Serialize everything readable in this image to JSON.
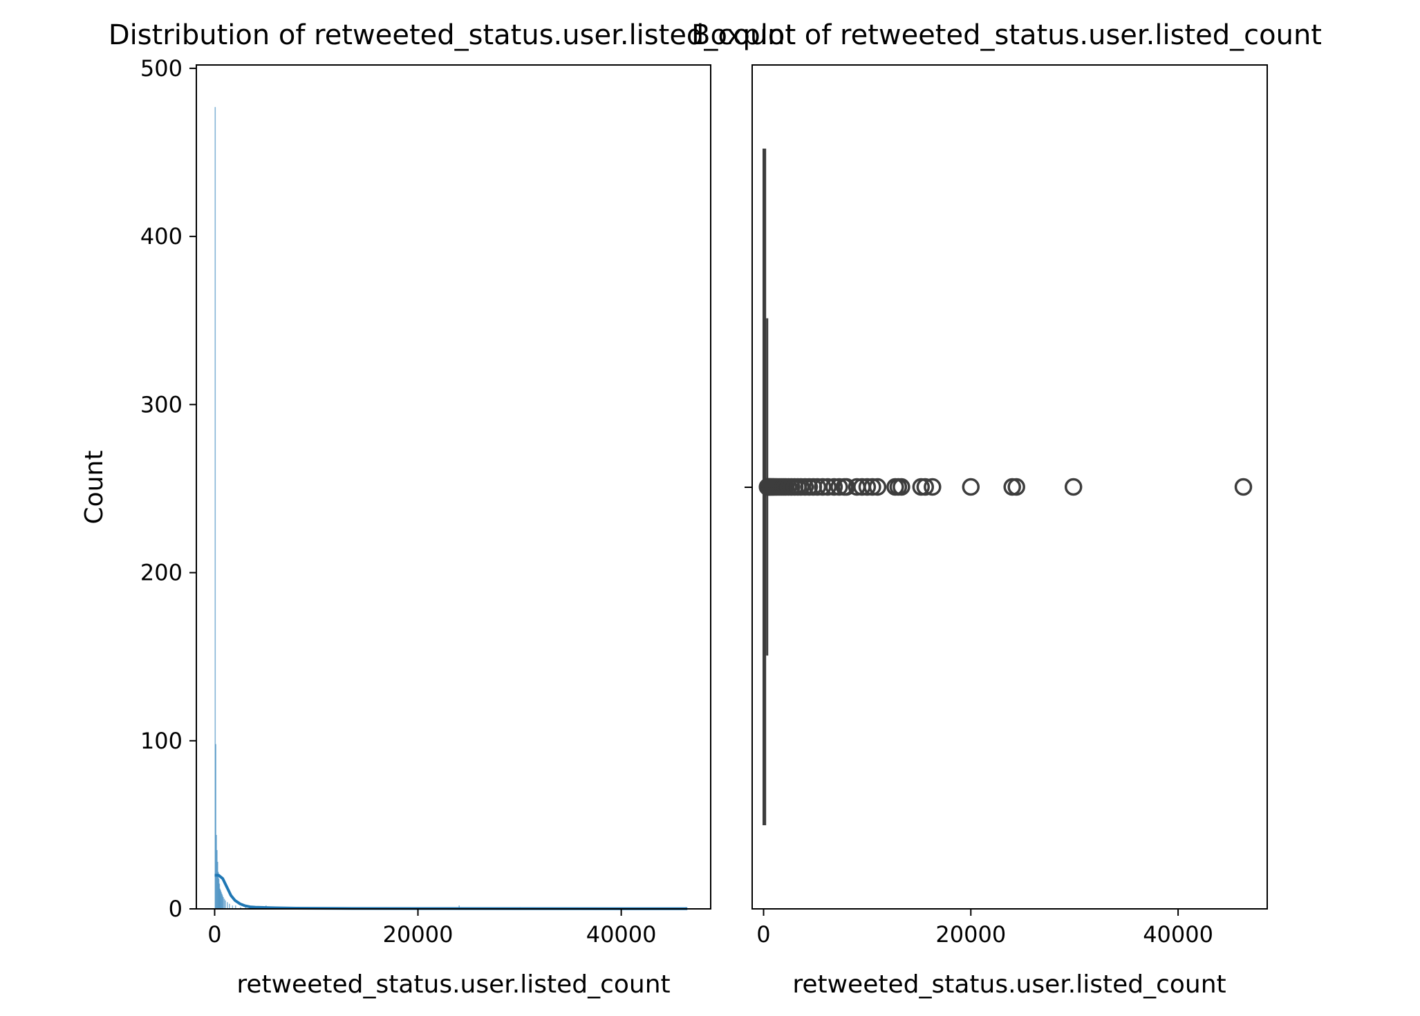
{
  "chart_data": [
    {
      "type": "histogram",
      "title": "Distribution of retweeted_status.user.listed_count",
      "xlabel": "retweeted_status.user.listed_count",
      "ylabel": "Count",
      "xlim": [
        -1800,
        48800
      ],
      "ylim": [
        0,
        502
      ],
      "xticks": [
        0,
        20000,
        40000
      ],
      "yticks": [
        0,
        100,
        200,
        300,
        400,
        500
      ],
      "bar_color": "#1f77b4",
      "bins": [
        {
          "x": 0,
          "count": 477
        },
        {
          "x": 60,
          "count": 98
        },
        {
          "x": 120,
          "count": 44
        },
        {
          "x": 180,
          "count": 35
        },
        {
          "x": 240,
          "count": 28
        },
        {
          "x": 300,
          "count": 22
        },
        {
          "x": 360,
          "count": 18
        },
        {
          "x": 420,
          "count": 15
        },
        {
          "x": 480,
          "count": 12
        },
        {
          "x": 540,
          "count": 11
        },
        {
          "x": 600,
          "count": 10
        },
        {
          "x": 660,
          "count": 9
        },
        {
          "x": 720,
          "count": 8
        },
        {
          "x": 800,
          "count": 7
        },
        {
          "x": 900,
          "count": 6
        },
        {
          "x": 1000,
          "count": 5
        },
        {
          "x": 1200,
          "count": 4
        },
        {
          "x": 1400,
          "count": 3
        },
        {
          "x": 1700,
          "count": 2
        },
        {
          "x": 2000,
          "count": 2
        },
        {
          "x": 2500,
          "count": 1
        },
        {
          "x": 3000,
          "count": 1
        },
        {
          "x": 4000,
          "count": 1
        },
        {
          "x": 5000,
          "count": 2
        },
        {
          "x": 6000,
          "count": 1
        },
        {
          "x": 7500,
          "count": 1
        },
        {
          "x": 10000,
          "count": 1
        },
        {
          "x": 13000,
          "count": 1
        },
        {
          "x": 15500,
          "count": 1
        },
        {
          "x": 16200,
          "count": 1
        },
        {
          "x": 20000,
          "count": 1
        },
        {
          "x": 24000,
          "count": 2
        },
        {
          "x": 30000,
          "count": 1
        },
        {
          "x": 46300,
          "count": 1
        }
      ],
      "kde": {
        "color": "#1f77b4",
        "x": [
          0,
          400,
          800,
          1200,
          1600,
          2000,
          2500,
          3000,
          3500,
          4000,
          5000,
          6000,
          8000,
          12000,
          20000,
          30000,
          40000,
          46500
        ],
        "y": [
          20,
          20,
          18,
          13,
          8,
          5,
          3,
          1.8,
          1.2,
          1,
          0.8,
          0.6,
          0.4,
          0.3,
          0.2,
          0.15,
          0.1,
          0.1
        ]
      }
    },
    {
      "type": "boxplot",
      "title": "Boxplot of retweeted_status.user.listed_count",
      "xlabel": "retweeted_status.user.listed_count",
      "xlim": [
        -1100,
        48600
      ],
      "xticks": [
        0,
        20000,
        40000
      ],
      "color": "#3d3d3d",
      "box": {
        "q1": 0,
        "median": 50,
        "q3": 150,
        "whisker_low": 0,
        "whisker_high": 350
      },
      "outliers": [
        380,
        420,
        480,
        550,
        620,
        700,
        800,
        900,
        1000,
        1150,
        1300,
        1500,
        1700,
        1900,
        2100,
        2400,
        2700,
        3000,
        3300,
        3600,
        4000,
        4400,
        4800,
        5200,
        5700,
        6200,
        6800,
        7300,
        7800,
        8000,
        9000,
        9500,
        10000,
        10500,
        11000,
        12700,
        13000,
        13300,
        15200,
        15600,
        16300,
        20000,
        24000,
        24400,
        29900,
        46300
      ]
    }
  ]
}
